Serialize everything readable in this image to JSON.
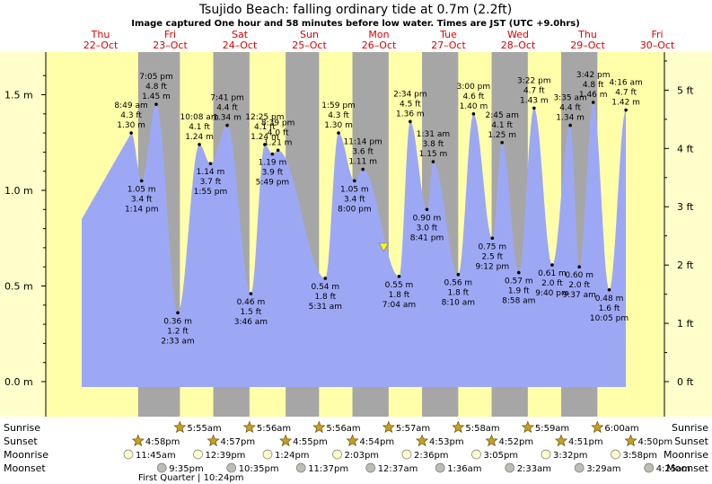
{
  "title": "Tsujido Beach: falling  ordinary tide at 0.7m (2.2ft)",
  "subtitle": "Image captured One hour and 58 minutes before low water. Times are JST (UTC +9.0hrs)",
  "chart_data": {
    "type": "area",
    "days": [
      {
        "dow": "Thu",
        "date": "22–Oct"
      },
      {
        "dow": "Fri",
        "date": "23–Oct"
      },
      {
        "dow": "Sat",
        "date": "24–Oct"
      },
      {
        "dow": "Sun",
        "date": "25–Oct"
      },
      {
        "dow": "Mon",
        "date": "26–Oct"
      },
      {
        "dow": "Tue",
        "date": "27–Oct"
      },
      {
        "dow": "Wed",
        "date": "28–Oct"
      },
      {
        "dow": "Thu",
        "date": "29–Oct"
      },
      {
        "dow": "Fri",
        "date": "30–Oct"
      }
    ],
    "y_left": {
      "unit": "m",
      "ticks": [
        "0.0 m",
        "0.5 m",
        "1.0 m",
        "1.5 m"
      ],
      "values": [
        0,
        0.5,
        1.0,
        1.5
      ]
    },
    "y_right": {
      "unit": "ft",
      "ticks": [
        "0 ft",
        "1 ft",
        "2 ft",
        "3 ft",
        "4 ft",
        "5 ft"
      ],
      "values": [
        0,
        1,
        2,
        3,
        4,
        5
      ]
    },
    "ylim_m": [
      -0.17,
      1.73
    ],
    "tides": [
      {
        "d": 0.44,
        "h": 1.3,
        "time": "8:49 am",
        "ft": "4.3 ft",
        "m": "1.30 m",
        "type": "high"
      },
      {
        "d": 0.59,
        "h": 1.05,
        "time": "1:14 pm",
        "ft": "3.4 ft",
        "m": "1.05 m",
        "type": "low"
      },
      {
        "d": 0.8,
        "h": 1.45,
        "time": "7:05 pm",
        "ft": "4.8 ft",
        "m": "1.45 m",
        "type": "high"
      },
      {
        "d": 1.11,
        "h": 0.36,
        "time": "2:33 am",
        "ft": "1.2 ft",
        "m": "0.36 m",
        "type": "low"
      },
      {
        "d": 1.42,
        "h": 1.24,
        "time": "10:08 am",
        "ft": "4.1 ft",
        "m": "1.24 m",
        "type": "high"
      },
      {
        "d": 1.58,
        "h": 1.14,
        "time": "1:55 pm",
        "ft": "3.7 ft",
        "m": "1.14 m",
        "type": "low"
      },
      {
        "d": 1.82,
        "h": 1.34,
        "time": "7:41 pm",
        "ft": "4.4 ft",
        "m": "1.34 m",
        "type": "high"
      },
      {
        "d": 2.16,
        "h": 0.46,
        "time": "3:46 am",
        "ft": "1.5 ft",
        "m": "0.46 m",
        "type": "low"
      },
      {
        "d": 2.36,
        "h": 1.24,
        "time": "12:25 pm",
        "ft": "4.1 ft",
        "m": "1.24 m",
        "type": "high"
      },
      {
        "d": 2.47,
        "h": 1.19,
        "time": "5:49 pm",
        "ft": "3.9 ft",
        "m": "1.19 m",
        "type": "low"
      },
      {
        "d": 2.55,
        "h": 1.21,
        "time": "8:39 pm",
        "ft": "4.0 ft",
        "m": "1.21 m",
        "type": "high"
      },
      {
        "d": 3.23,
        "h": 0.54,
        "time": "5:31 am",
        "ft": "1.8 ft",
        "m": "0.54 m",
        "type": "low"
      },
      {
        "d": 3.42,
        "h": 1.3,
        "time": "1:59 pm",
        "ft": "4.3 ft",
        "m": "1.30 m",
        "type": "high"
      },
      {
        "d": 3.65,
        "h": 1.05,
        "time": "8:00 pm",
        "ft": "3.4 ft",
        "m": "1.05 m",
        "type": "low"
      },
      {
        "d": 3.77,
        "h": 1.11,
        "time": "11:14 pm",
        "ft": "3.6 ft",
        "m": "1.11 m",
        "type": "high"
      },
      {
        "d": 4.29,
        "h": 0.55,
        "time": "7:04 am",
        "ft": "1.8 ft",
        "m": "0.55 m",
        "type": "low"
      },
      {
        "d": 4.45,
        "h": 1.36,
        "time": "2:34 pm",
        "ft": "4.5 ft",
        "m": "1.36 m",
        "type": "high"
      },
      {
        "d": 4.69,
        "h": 0.9,
        "time": "8:41 pm",
        "ft": "3.0 ft",
        "m": "0.90 m",
        "type": "low"
      },
      {
        "d": 4.78,
        "h": 1.15,
        "time": "1:31 am",
        "ft": "3.8 ft",
        "m": "1.15 m",
        "type": "high"
      },
      {
        "d": 5.14,
        "h": 0.56,
        "time": "8:10 am",
        "ft": "1.8 ft",
        "m": "0.56 m",
        "type": "low"
      },
      {
        "d": 5.36,
        "h": 1.4,
        "time": "3:00 pm",
        "ft": "4.6 ft",
        "m": "1.40 m",
        "type": "high"
      },
      {
        "d": 5.63,
        "h": 0.75,
        "time": "9:12 pm",
        "ft": "2.5 ft",
        "m": "0.75 m",
        "type": "low"
      },
      {
        "d": 5.77,
        "h": 1.25,
        "time": "2:45 am",
        "ft": "4.1 ft",
        "m": "1.25 m",
        "type": "high"
      },
      {
        "d": 6.01,
        "h": 0.57,
        "time": "8:58 am",
        "ft": "1.9 ft",
        "m": "0.57 m",
        "type": "low"
      },
      {
        "d": 6.23,
        "h": 1.43,
        "time": "3:22 pm",
        "ft": "4.7 ft",
        "m": "1.43 m",
        "type": "high"
      },
      {
        "d": 6.49,
        "h": 0.61,
        "time": "9:40 pm",
        "ft": "2.0 ft",
        "m": "0.61 m",
        "type": "low"
      },
      {
        "d": 6.75,
        "h": 1.34,
        "time": "3:35 am",
        "ft": "4.4 ft",
        "m": "1.34 m",
        "type": "high"
      },
      {
        "d": 6.88,
        "h": 0.6,
        "time": "9:37 am",
        "ft": "2.0 ft",
        "m": "0.60 m",
        "type": "low"
      },
      {
        "d": 7.08,
        "h": 1.46,
        "time": "3:42 pm",
        "ft": "4.8 ft",
        "m": "1.46 m",
        "type": "high"
      },
      {
        "d": 7.31,
        "h": 0.48,
        "time": "10:05 pm",
        "ft": "1.6 ft",
        "m": "0.48 m",
        "type": "low"
      },
      {
        "d": 7.55,
        "h": 1.42,
        "time": "4:16 am",
        "ft": "4.7 ft",
        "m": "1.42 m",
        "type": "high"
      }
    ],
    "current": {
      "d": 4.07,
      "h": 0.7
    },
    "night_bands": [
      [
        0.54,
        1.14
      ],
      [
        1.62,
        2.14
      ],
      [
        2.66,
        3.14
      ],
      [
        3.62,
        4.14
      ],
      [
        4.62,
        5.14
      ],
      [
        5.62,
        6.14
      ],
      [
        6.62,
        7.14
      ]
    ],
    "astro": {
      "rows": [
        "Sunrise",
        "Sunset",
        "Moonrise",
        "Moonset"
      ],
      "sunrise": [
        {
          "d": 1.14,
          "t": "5:55am"
        },
        {
          "d": 2.14,
          "t": "5:56am"
        },
        {
          "d": 3.14,
          "t": "5:56am"
        },
        {
          "d": 4.14,
          "t": "5:57am"
        },
        {
          "d": 5.14,
          "t": "5:58am"
        },
        {
          "d": 6.14,
          "t": "5:59am"
        },
        {
          "d": 7.14,
          "t": "6:00am"
        }
      ],
      "sunset": [
        {
          "d": 0.54,
          "t": "4:58pm"
        },
        {
          "d": 1.62,
          "t": "4:57pm"
        },
        {
          "d": 2.66,
          "t": "4:55pm"
        },
        {
          "d": 3.62,
          "t": "4:54pm"
        },
        {
          "d": 4.62,
          "t": "4:53pm"
        },
        {
          "d": 5.62,
          "t": "4:52pm"
        },
        {
          "d": 6.62,
          "t": "4:51pm"
        },
        {
          "d": 7.62,
          "t": "4:50pm"
        }
      ],
      "moonrise": [
        {
          "d": 0.4,
          "t": "11:45am"
        },
        {
          "d": 1.4,
          "t": "12:39pm"
        },
        {
          "d": 2.4,
          "t": "1:24pm"
        },
        {
          "d": 3.4,
          "t": "2:03pm"
        },
        {
          "d": 4.4,
          "t": "2:36pm"
        },
        {
          "d": 5.4,
          "t": "3:05pm"
        },
        {
          "d": 6.4,
          "t": "3:32pm"
        },
        {
          "d": 7.4,
          "t": "3:58pm"
        }
      ],
      "moonset": [
        {
          "d": 0.88,
          "t": "9:35pm"
        },
        {
          "d": 1.88,
          "t": "10:35pm"
        },
        {
          "d": 2.88,
          "t": "11:37pm"
        },
        {
          "d": 3.88,
          "t": "12:37am"
        },
        {
          "d": 4.88,
          "t": "1:36am"
        },
        {
          "d": 5.88,
          "t": "2:33am"
        },
        {
          "d": 6.88,
          "t": "3:29am"
        },
        {
          "d": 7.88,
          "t": "4:25am"
        }
      ],
      "phase": {
        "d": 1.3,
        "text": "First Quarter | 10:24pm"
      }
    }
  }
}
